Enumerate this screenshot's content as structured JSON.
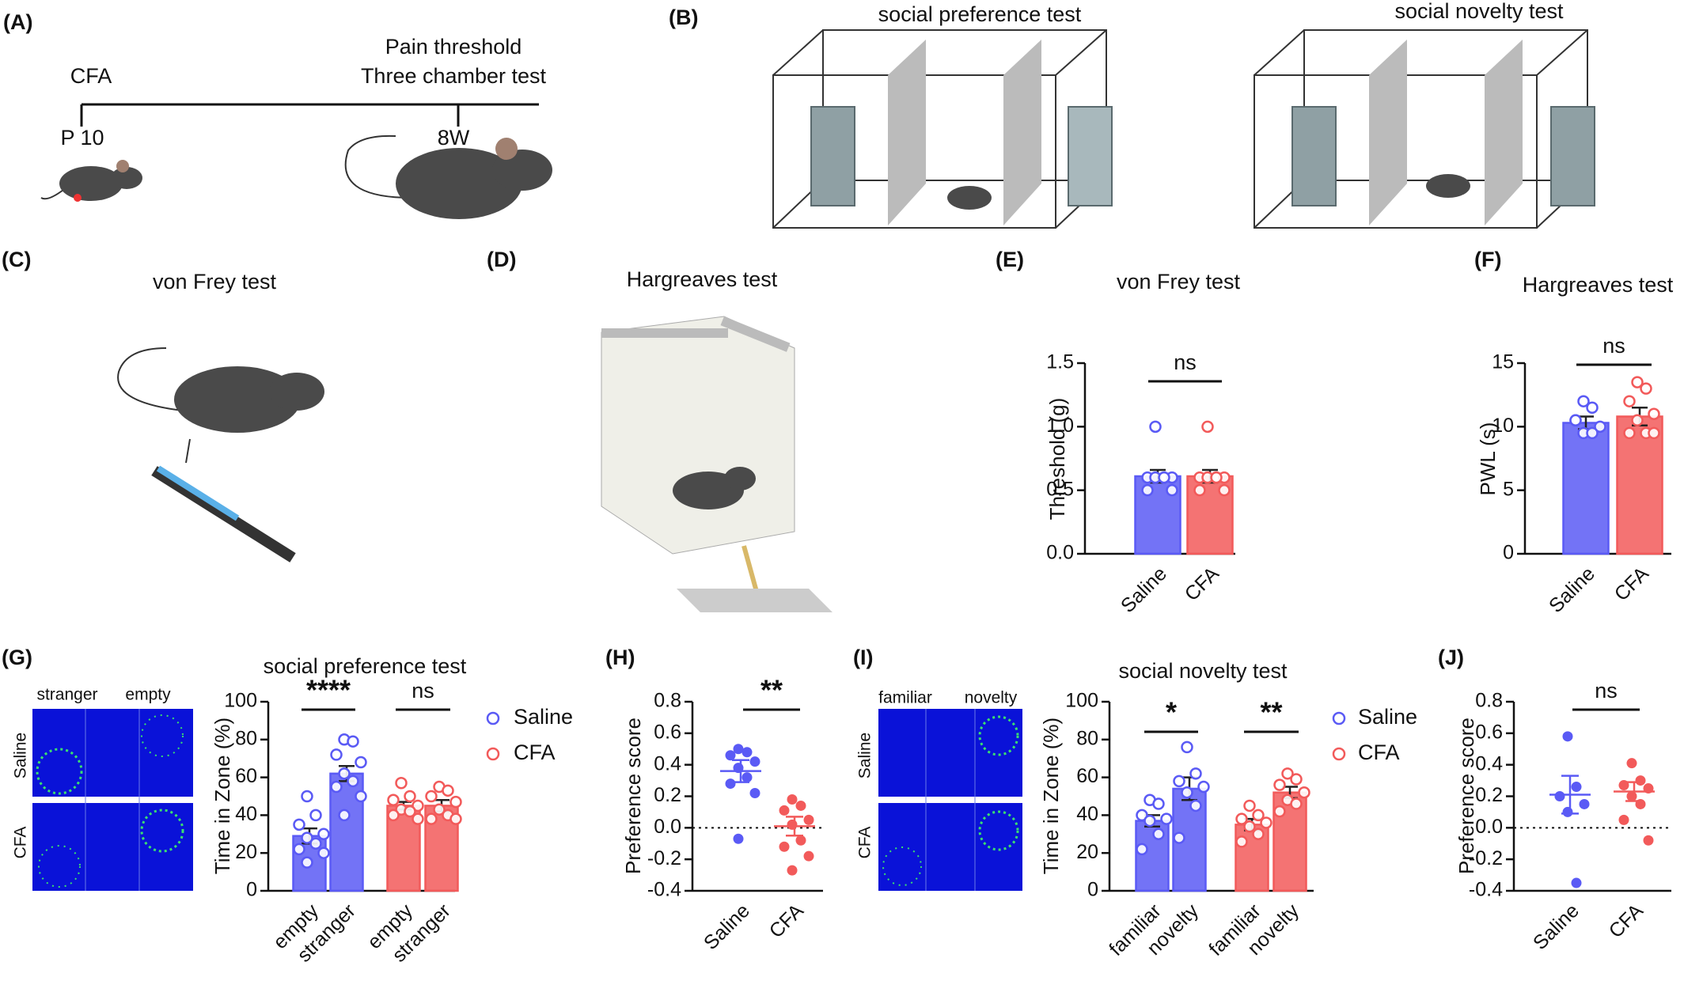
{
  "panels": {
    "a": {
      "label": "(A)",
      "start": "CFA",
      "end_line1": "Pain threshold",
      "end_line2": "Three chamber test",
      "start_age": "P 10",
      "end_age": "8W"
    },
    "b": {
      "label": "(B)",
      "left_title": "social preference test",
      "right_title": "social novelty test"
    },
    "c": {
      "label": "(C)",
      "title": "von Frey test"
    },
    "d": {
      "label": "(D)",
      "title": "Hargreaves test"
    },
    "g_images": {
      "columns": [
        "stranger",
        "empty"
      ],
      "rows": [
        "Saline",
        "CFA"
      ]
    },
    "i_images": {
      "columns": [
        "familiar",
        "novelty"
      ],
      "rows": [
        "Saline",
        "CFA"
      ]
    }
  },
  "chart_data": [
    {
      "type": "bar",
      "panel": "(E)",
      "title": "von Frey test",
      "ylabel": "Threshold (g)",
      "categories": [
        "Saline",
        "CFA"
      ],
      "colors": [
        "#5a5af5",
        "#f25a5a"
      ],
      "values": [
        0.61,
        0.61
      ],
      "errors": [
        0.05,
        0.05
      ],
      "points": [
        [
          1.0,
          0.6,
          0.6,
          0.6,
          0.6,
          0.6,
          0.5,
          0.5
        ],
        [
          1.0,
          0.6,
          0.6,
          0.6,
          0.6,
          0.6,
          0.5,
          0.5
        ]
      ],
      "ylim": [
        0,
        1.5
      ],
      "yticks": [
        {
          "value": 0,
          "label": "0.0"
        },
        0.5,
        {
          "value": 1,
          "label": "1.0"
        },
        1.5
      ],
      "annotations": [
        "ns"
      ]
    },
    {
      "type": "bar",
      "panel": "(F)",
      "title": "Hargreaves test",
      "ylabel": "PWL (s)",
      "categories": [
        "Saline",
        "CFA"
      ],
      "colors": [
        "#5a5af5",
        "#f25a5a"
      ],
      "values": [
        10.3,
        10.8
      ],
      "errors": [
        0.5,
        0.7
      ],
      "points": [
        [
          12,
          11.5,
          10.5,
          10,
          9.5,
          9.5,
          10.5
        ],
        [
          13.5,
          13,
          12,
          11,
          10.5,
          9.5,
          9.5,
          9.5
        ]
      ],
      "ylim": [
        0,
        15
      ],
      "yticks": [
        0,
        5,
        10,
        15
      ],
      "annotations": [
        "ns"
      ]
    },
    {
      "type": "grouped_bar",
      "panel": "(G)",
      "title": "social preference test",
      "ylabel": "Time in Zone (%)",
      "categories": [
        "empty",
        "stranger"
      ],
      "series": [
        {
          "name": "Saline",
          "color": "#5a5af5",
          "values": [
            29,
            62
          ],
          "errors": [
            4,
            4
          ],
          "points": [
            [
              50,
              40,
              35,
              30,
              28,
              25,
              22,
              20,
              15
            ],
            [
              80,
              79,
              72,
              68,
              62,
              58,
              55,
              50,
              40
            ]
          ]
        },
        {
          "name": "CFA",
          "color": "#f25a5a",
          "values": [
            45,
            45
          ],
          "errors": [
            2,
            3
          ],
          "points": [
            [
              57,
              50,
              48,
              45,
              43,
              42,
              40,
              38
            ],
            [
              55,
              53,
              50,
              47,
              43,
              40,
              38,
              38
            ]
          ]
        }
      ],
      "ylim": [
        0,
        100
      ],
      "yticks": [
        0,
        20,
        40,
        60,
        80,
        100
      ],
      "annotations": [
        "****",
        "ns"
      ],
      "legend": "right"
    },
    {
      "type": "dot",
      "panel": "(H)",
      "ylabel": "Preference score",
      "categories": [
        "Saline",
        "CFA"
      ],
      "colors": [
        "#5a5af5",
        "#f25a5a"
      ],
      "values": [
        0.36,
        0.01
      ],
      "errors": [
        0.07,
        0.06
      ],
      "points": [
        [
          0.5,
          0.48,
          0.46,
          0.42,
          0.38,
          0.32,
          0.28,
          0.22,
          -0.07
        ],
        [
          0.18,
          0.14,
          0.11,
          0.05,
          0.02,
          -0.08,
          -0.12,
          -0.18,
          -0.27
        ]
      ],
      "ylim": [
        -0.4,
        0.8
      ],
      "yticks": [
        -0.4,
        -0.2,
        {
          "value": 0,
          "label": "0.0"
        },
        0.2,
        0.4,
        0.6,
        0.8
      ],
      "hline": 0,
      "annotations": [
        "**"
      ]
    },
    {
      "type": "grouped_bar",
      "panel": "(I)",
      "title": "social novelty test",
      "ylabel": "Time in Zone (%)",
      "categories": [
        "familiar",
        "novelty"
      ],
      "series": [
        {
          "name": "Saline",
          "color": "#5a5af5",
          "values": [
            37,
            54
          ],
          "errors": [
            3,
            6
          ],
          "points": [
            [
              48,
              46,
              40,
              38,
              37,
              30,
              22
            ],
            [
              76,
              62,
              58,
              55,
              52,
              45,
              28
            ]
          ]
        },
        {
          "name": "CFA",
          "color": "#f25a5a",
          "values": [
            35,
            52
          ],
          "errors": [
            3,
            3
          ],
          "points": [
            [
              45,
              40,
              38,
              36,
              34,
              30,
              26
            ],
            [
              62,
              59,
              56,
              52,
              48,
              46,
              42
            ]
          ]
        }
      ],
      "ylim": [
        0,
        100
      ],
      "yticks": [
        0,
        20,
        40,
        60,
        80,
        100
      ],
      "annotations": [
        "*",
        "**"
      ],
      "legend": "right"
    },
    {
      "type": "dot",
      "panel": "(J)",
      "ylabel": "Preference score",
      "categories": [
        "Saline",
        "CFA"
      ],
      "colors": [
        "#5a5af5",
        "#f25a5a"
      ],
      "values": [
        0.21,
        0.23
      ],
      "errors": [
        0.12,
        0.06
      ],
      "points": [
        [
          0.58,
          0.26,
          0.2,
          0.15,
          0.1,
          -0.35
        ],
        [
          0.41,
          0.3,
          0.27,
          0.25,
          0.2,
          0.15,
          0.05,
          -0.08
        ]
      ],
      "ylim": [
        -0.4,
        0.8
      ],
      "yticks": [
        -0.4,
        -0.2,
        {
          "value": 0,
          "label": "0.0"
        },
        0.2,
        0.4,
        0.6,
        0.8
      ],
      "hline": 0,
      "annotations": [
        "ns"
      ]
    }
  ]
}
